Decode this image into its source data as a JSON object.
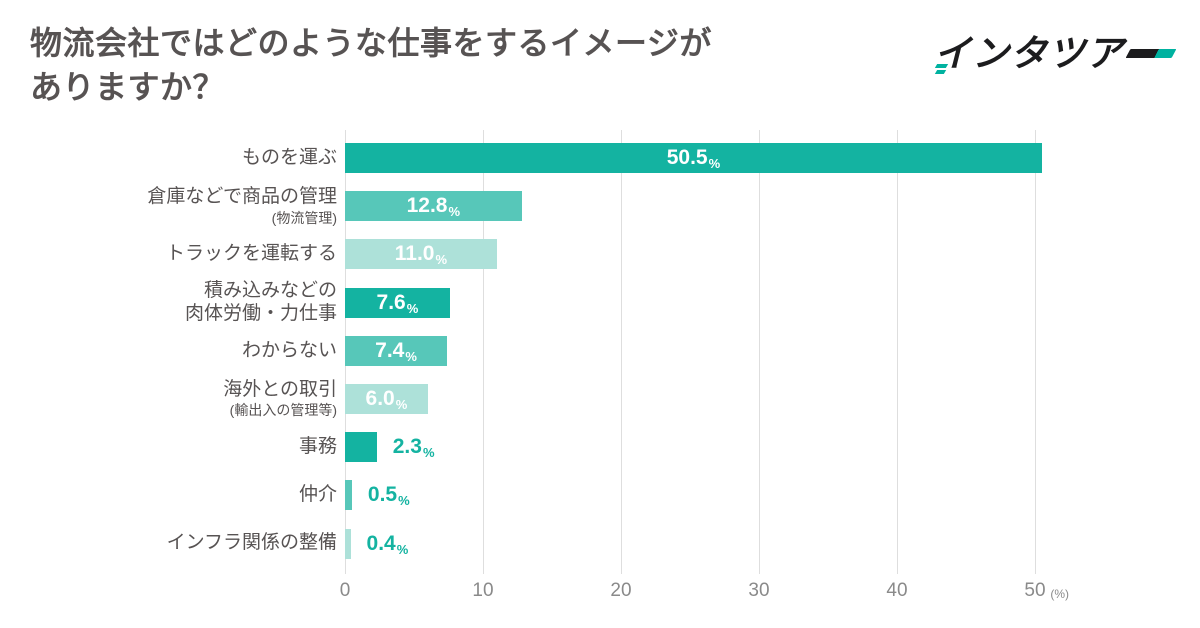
{
  "header": {
    "title_line1": "物流会社ではどのような仕事をするイメージが",
    "title_line2": "ありますか？",
    "logo": {
      "first_char": "イ",
      "middle": "ンタツア",
      "dash_char": "ー",
      "text_color": "#1c1c1e",
      "accent_color": "#00b2a0"
    }
  },
  "chart_data": {
    "type": "bar",
    "orientation": "horizontal",
    "unit": "%",
    "xlim": [
      0,
      50
    ],
    "x_ticks": [
      "0",
      "10",
      "20",
      "30",
      "40",
      "50"
    ],
    "x_axis_unit_label": "(%)",
    "grid": true,
    "categories": [
      "ものを運ぶ",
      "倉庫などで商品の管理 (物流管理)",
      "トラックを運転する",
      "積み込みなどの肉体労働・力仕事",
      "わからない",
      "海外との取引 (輸出入の管理等)",
      "事務",
      "仲介",
      "インフラ関係の整備"
    ],
    "values": [
      50.5,
      12.8,
      11.0,
      7.6,
      7.4,
      6.0,
      2.3,
      0.5,
      0.4
    ],
    "bars": [
      {
        "label": "ものを運ぶ",
        "label2": "",
        "sublabel": "",
        "value": 50.5,
        "display": "50.5",
        "shade": "dark",
        "value_inside": true
      },
      {
        "label": "倉庫などで商品の管理",
        "label2": "",
        "sublabel": "(物流管理)",
        "value": 12.8,
        "display": "12.8",
        "shade": "medium",
        "value_inside": true
      },
      {
        "label": "トラックを運転する",
        "label2": "",
        "sublabel": "",
        "value": 11.0,
        "display": "11.0",
        "shade": "light",
        "value_inside": true
      },
      {
        "label": "積み込みなどの",
        "label2": "肉体労働・力仕事",
        "sublabel": "",
        "value": 7.6,
        "display": "7.6",
        "shade": "dark",
        "value_inside": true
      },
      {
        "label": "わからない",
        "label2": "",
        "sublabel": "",
        "value": 7.4,
        "display": "7.4",
        "shade": "medium",
        "value_inside": true
      },
      {
        "label": "海外との取引",
        "label2": "",
        "sublabel": "(輸出入の管理等)",
        "value": 6.0,
        "display": "6.0",
        "shade": "light",
        "value_inside": true
      },
      {
        "label": "事務",
        "label2": "",
        "sublabel": "",
        "value": 2.3,
        "display": "2.3",
        "shade": "dark",
        "value_inside": false
      },
      {
        "label": "仲介",
        "label2": "",
        "sublabel": "",
        "value": 0.5,
        "display": "0.5",
        "shade": "medium",
        "value_inside": false
      },
      {
        "label": "インフラ関係の整備",
        "label2": "",
        "sublabel": "",
        "value": 0.4,
        "display": "0.4",
        "shade": "light",
        "value_inside": false
      }
    ],
    "colors": {
      "dark": "#14b3a1",
      "medium": "#57c7b9",
      "light": "#ade1d9",
      "value_outside_text": "#14b3a1",
      "grid_line": "#dedede",
      "axis_text": "#8a8a8a",
      "label_text": "#575353"
    }
  }
}
